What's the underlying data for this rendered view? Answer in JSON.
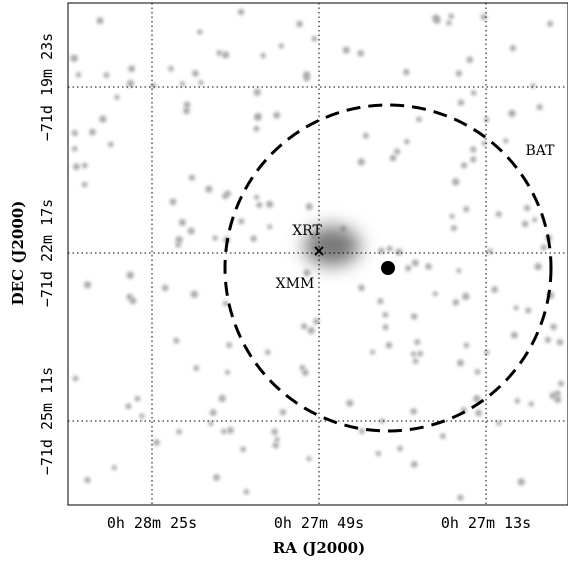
{
  "plot": {
    "x_axis_label": "RA (J2000)",
    "y_axis_label": "DEC (J2000)",
    "x_tick_labels": [
      "0h 28m 25s",
      "0h 27m 49s",
      "0h 27m 13s"
    ],
    "y_tick_labels": [
      "−71d 19m 23s",
      "−71d 22m 17s",
      "−71d 25m 11s"
    ],
    "annotations": {
      "xrt": "XRT",
      "xmm": "XMM",
      "bat": "BAT"
    }
  }
}
